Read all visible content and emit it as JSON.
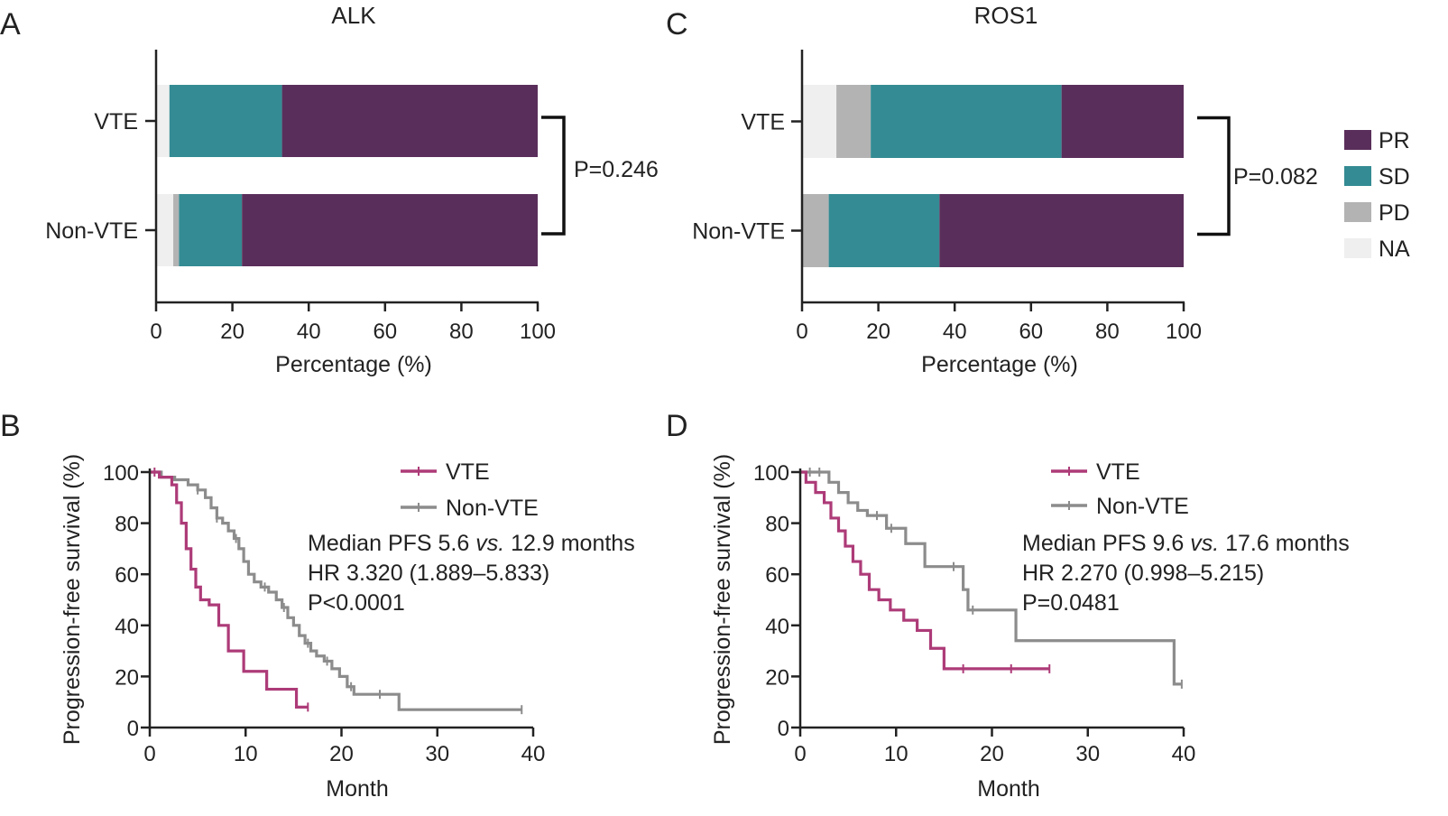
{
  "figure": {
    "panels": [
      "A",
      "B",
      "C",
      "D"
    ]
  },
  "chart_data": [
    {
      "panel": "A",
      "type": "bar",
      "orientation": "horizontal",
      "stacked": true,
      "title": "ALK",
      "categories": [
        "VTE",
        "Non-VTE"
      ],
      "series": [
        {
          "name": "NA",
          "color": "#efefef",
          "values": [
            3.5,
            4.5
          ]
        },
        {
          "name": "PD",
          "color": "#b3b3b3",
          "values": [
            0.0,
            1.5
          ]
        },
        {
          "name": "SD",
          "color": "#348b93",
          "values": [
            29.5,
            16.5
          ]
        },
        {
          "name": "PR",
          "color": "#5a2e5a",
          "values": [
            67.0,
            77.5
          ]
        }
      ],
      "xlabel": "Percentage (%)",
      "xlim": [
        0,
        100
      ],
      "xticks": [
        0,
        20,
        40,
        60,
        80,
        100
      ],
      "annotation": "P=0.246"
    },
    {
      "panel": "C",
      "type": "bar",
      "orientation": "horizontal",
      "stacked": true,
      "title": "ROS1",
      "categories": [
        "VTE",
        "Non-VTE"
      ],
      "series": [
        {
          "name": "NA",
          "color": "#efefef",
          "values": [
            9.0,
            0.0
          ]
        },
        {
          "name": "PD",
          "color": "#b3b3b3",
          "values": [
            9.0,
            7.0
          ]
        },
        {
          "name": "SD",
          "color": "#348b93",
          "values": [
            50.0,
            29.0
          ]
        },
        {
          "name": "PR",
          "color": "#5a2e5a",
          "values": [
            32.0,
            64.0
          ]
        }
      ],
      "xlabel": "Percentage (%)",
      "xlim": [
        0,
        100
      ],
      "xticks": [
        0,
        20,
        40,
        60,
        80,
        100
      ],
      "annotation": "P=0.082",
      "legend": {
        "placement": "right",
        "entries": [
          "PR",
          "SD",
          "PD",
          "NA"
        ]
      }
    },
    {
      "panel": "B",
      "type": "line",
      "step": true,
      "xlabel": "Month",
      "ylabel": "Progression-free survival (%)",
      "xlim": [
        0,
        40
      ],
      "ylim": [
        0,
        100
      ],
      "xticks": [
        0,
        10,
        20,
        30,
        40
      ],
      "yticks": [
        0,
        20,
        40,
        60,
        80,
        100
      ],
      "legend": {
        "placement": "top-right"
      },
      "annotations": [
        "Median PFS 5.6 ",
        "vs.",
        " 12.9 months",
        "HR 3.320 (1.889–5.833)",
        "P<0.0001"
      ],
      "series": [
        {
          "name": "VTE",
          "color": "#ad3b78",
          "x": [
            0,
            1,
            2.3,
            2.8,
            3.3,
            3.8,
            4.3,
            4.8,
            5.3,
            6.2,
            7.2,
            8.2,
            9.8,
            12.2,
            15.3,
            16.5
          ],
          "y": [
            100,
            98,
            95,
            88,
            80,
            70,
            62,
            55,
            50,
            48,
            40,
            30,
            22,
            15,
            8,
            8
          ],
          "censor_x": [
            0.5,
            16.5
          ]
        },
        {
          "name": "Non-VTE",
          "color": "#8c8c8c",
          "x": [
            0,
            1.2,
            2.6,
            4,
            5,
            5.8,
            6.4,
            7,
            7.6,
            8.2,
            8.8,
            9.3,
            9.8,
            10.3,
            10.9,
            11.6,
            12.4,
            13.2,
            13.8,
            14.4,
            15,
            15.6,
            16.2,
            16.8,
            17.4,
            18.2,
            19,
            19.8,
            20.6,
            21.3,
            26,
            38.8
          ],
          "y": [
            100,
            98,
            97,
            95,
            93,
            90,
            86,
            82,
            80,
            77,
            74,
            70,
            65,
            60,
            57,
            55,
            53,
            50,
            47,
            43,
            40,
            36,
            33,
            30,
            28,
            26,
            23,
            20,
            16,
            13,
            7,
            7
          ],
          "censor_x": [
            5,
            7,
            9,
            12,
            14,
            16.5,
            18.5,
            21,
            24,
            38.8
          ]
        }
      ]
    },
    {
      "panel": "D",
      "type": "line",
      "step": true,
      "xlabel": "Month",
      "ylabel": "Progression-free survival (%)",
      "xlim": [
        0,
        40
      ],
      "ylim": [
        0,
        100
      ],
      "xticks": [
        0,
        10,
        20,
        30,
        40
      ],
      "yticks": [
        0,
        20,
        40,
        60,
        80,
        100
      ],
      "legend": {
        "placement": "top-right"
      },
      "annotations": [
        "Median PFS 9.6 ",
        "vs.",
        " 17.6 months",
        "HR 2.270 (0.998–5.215)",
        "P=0.0481"
      ],
      "series": [
        {
          "name": "VTE",
          "color": "#ad3b78",
          "x": [
            0,
            0.6,
            1.6,
            2.5,
            3.2,
            4,
            4.7,
            5.5,
            6.3,
            7.2,
            8.2,
            9.4,
            10.8,
            12.2,
            13.6,
            15,
            26
          ],
          "y": [
            100,
            96,
            92,
            88,
            82,
            77,
            71,
            65,
            60,
            54,
            50,
            46,
            42,
            38,
            31,
            23,
            23
          ],
          "censor_x": [
            17,
            22,
            26
          ]
        },
        {
          "name": "Non-VTE",
          "color": "#8c8c8c",
          "x": [
            0,
            3,
            4,
            5,
            6,
            7,
            9,
            11,
            13,
            14,
            17,
            17.5,
            22.5,
            39,
            39.8
          ],
          "y": [
            100,
            96,
            92,
            88,
            85,
            83,
            78,
            72,
            63,
            63,
            54,
            46,
            34,
            17,
            17
          ],
          "censor_x": [
            1,
            2,
            8,
            9.5,
            16,
            18,
            39.8
          ]
        }
      ]
    }
  ]
}
